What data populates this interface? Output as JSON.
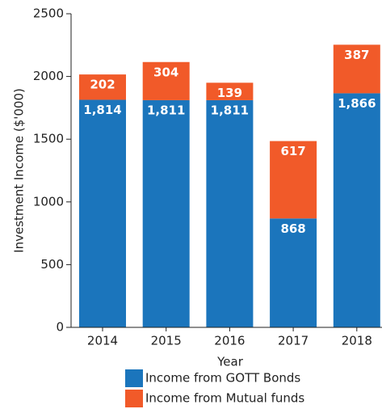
{
  "chart_data": {
    "type": "stacked_bar",
    "xlabel": "Year",
    "ylabel": "Investment Income ($'000)",
    "categories": [
      "2014",
      "2015",
      "2016",
      "2017",
      "2018"
    ],
    "series": [
      {
        "name": "Income from GOTT Bonds",
        "color": "#1b75bc",
        "values": [
          1814,
          1811,
          1811,
          868,
          1866
        ],
        "value_labels": [
          "1,814",
          "1,811",
          "1,811",
          "868",
          "1,866"
        ]
      },
      {
        "name": "Income from Mutual funds",
        "color": "#f15a29",
        "values": [
          202,
          304,
          139,
          617,
          387
        ]
      }
    ],
    "ylim": [
      0,
      2500
    ],
    "yticks": [
      0,
      500,
      1000,
      1500,
      2000,
      2500
    ]
  }
}
